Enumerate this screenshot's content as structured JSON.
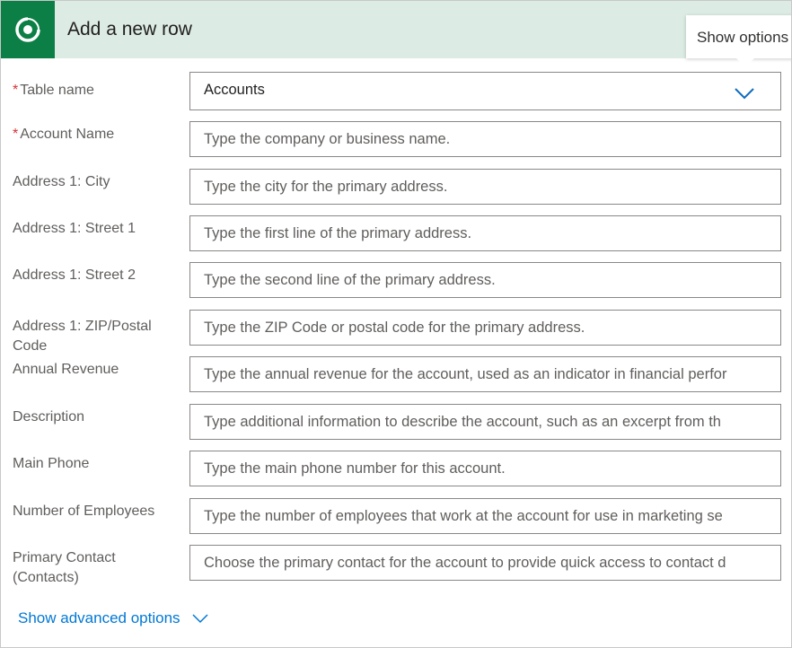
{
  "header": {
    "title": "Add a new row",
    "logo_icon": "dataverse-logo",
    "accent": "#0b7f45"
  },
  "tooltip": {
    "text": "Show options"
  },
  "fields": [
    {
      "label": "Table name",
      "required": true,
      "value": "Accounts",
      "type": "select"
    },
    {
      "label": "Account Name",
      "required": true,
      "placeholder": "Type the company or business name."
    },
    {
      "label": "Address 1: City",
      "placeholder": "Type the city for the primary address."
    },
    {
      "label": "Address 1: Street 1",
      "placeholder": "Type the first line of the primary address."
    },
    {
      "label": "Address 1: Street 2",
      "placeholder": "Type the second line of the primary address."
    },
    {
      "label": "Address 1: ZIP/Postal Code",
      "placeholder": "Type the ZIP Code or postal code for the primary address."
    },
    {
      "label": "Annual Revenue",
      "placeholder": "Type the annual revenue for the account, used as an indicator in financial perfor"
    },
    {
      "label": "Description",
      "placeholder": "Type additional information to describe the account, such as an excerpt from th"
    },
    {
      "label": "Main Phone",
      "placeholder": "Type the main phone number for this account."
    },
    {
      "label": "Number of Employees",
      "placeholder": "Type the number of employees that work at the account for use in marketing se"
    },
    {
      "label": "Primary Contact (Contacts)",
      "placeholder": "Choose the primary contact for the account to provide quick access to contact d"
    }
  ],
  "advanced": {
    "label": "Show advanced options"
  }
}
